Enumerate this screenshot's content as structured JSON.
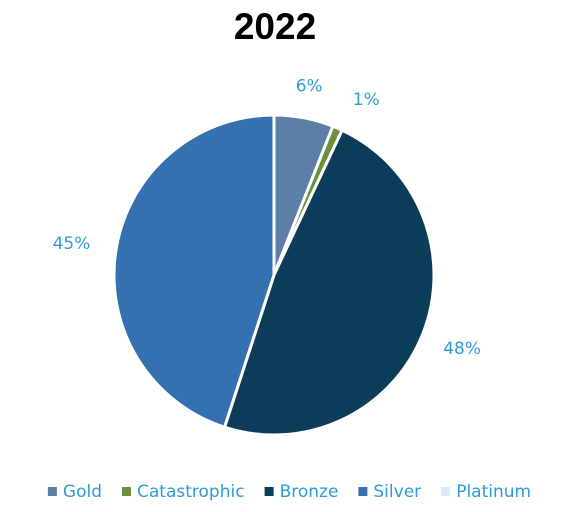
{
  "chart_data": {
    "type": "pie",
    "title": "2022",
    "categories": [
      "Gold",
      "Catastrophic",
      "Bronze",
      "Silver",
      "Platinum"
    ],
    "values": [
      6,
      1,
      48,
      45,
      0
    ],
    "data_labels": [
      "6%",
      "1%",
      "48%",
      "45%",
      ""
    ],
    "colors": [
      "#5b7fa7",
      "#6f8f3a",
      "#0b3d5b",
      "#3571b0",
      "#dce9f7"
    ],
    "label_color": "#2e9bd8",
    "legend_text_color": "#2e9bd8",
    "legend_position": "bottom",
    "start_angle": "12 o'clock",
    "direction": "clockwise"
  }
}
